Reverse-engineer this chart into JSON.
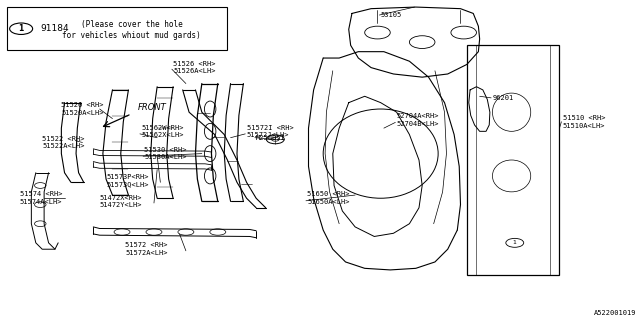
{
  "bg_color": "#ffffff",
  "border_color": "#000000",
  "diagram_id": "A522001019",
  "note_number": "1",
  "note_code": "91184",
  "note_text": "(Please cover the hole\nfor vehicles whiout mud gards)"
}
